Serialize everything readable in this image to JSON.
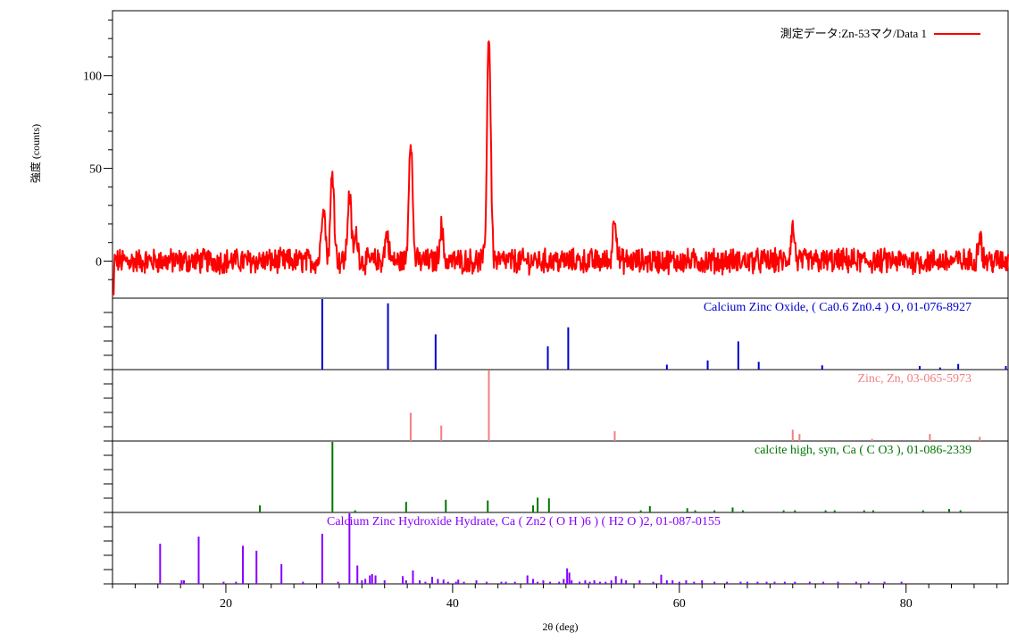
{
  "chart_data": {
    "type": "line",
    "ylabel": "強度 (counts)",
    "xlabel": "2θ (deg)",
    "xlim": [
      10,
      89
    ],
    "ylim": [
      -20,
      135
    ],
    "xticks": [
      20,
      40,
      60,
      80
    ],
    "yticks": [
      0,
      50,
      100
    ],
    "legend_position": "top-right",
    "grid": false,
    "measured": {
      "name": "測定データ:Zn-53マク/Data 1",
      "color": "#ff0000",
      "noise_amplitude": 6,
      "peaks": [
        {
          "x": 28.6,
          "y": 32
        },
        {
          "x": 29.4,
          "y": 49
        },
        {
          "x": 30.9,
          "y": 36
        },
        {
          "x": 31.5,
          "y": 14
        },
        {
          "x": 34.2,
          "y": 15
        },
        {
          "x": 36.3,
          "y": 68
        },
        {
          "x": 39.0,
          "y": 18
        },
        {
          "x": 43.2,
          "y": 123
        },
        {
          "x": 54.3,
          "y": 25
        },
        {
          "x": 70.0,
          "y": 18
        },
        {
          "x": 86.5,
          "y": 15
        }
      ]
    },
    "reference_patterns": [
      {
        "label": "Calcium Zinc Oxide, ( Ca0.6 Zn0.4 ) O, 01-076-8927",
        "color": "#0000cc",
        "label_align": "end",
        "sticks": [
          [
            28.5,
            100
          ],
          [
            34.3,
            94
          ],
          [
            38.5,
            50
          ],
          [
            48.4,
            33
          ],
          [
            50.2,
            60
          ],
          [
            58.9,
            7
          ],
          [
            62.5,
            13
          ],
          [
            65.2,
            40
          ],
          [
            67.0,
            11
          ],
          [
            72.6,
            6
          ],
          [
            81.2,
            5
          ],
          [
            83.0,
            3
          ],
          [
            84.6,
            8
          ],
          [
            88.8,
            5
          ]
        ]
      },
      {
        "label": "Zinc, Zn, 03-065-5973",
        "color": "#f08080",
        "label_align": "end",
        "sticks": [
          [
            36.3,
            40
          ],
          [
            39.0,
            22
          ],
          [
            43.2,
            100
          ],
          [
            54.3,
            14
          ],
          [
            70.0,
            16
          ],
          [
            70.6,
            10
          ],
          [
            77.0,
            3
          ],
          [
            82.1,
            10
          ],
          [
            86.5,
            6
          ]
        ]
      },
      {
        "label": "calcite high, syn, Ca ( C O3 ), 01-086-2339",
        "color": "#007700",
        "label_align": "end",
        "sticks": [
          [
            23.0,
            10
          ],
          [
            29.4,
            100
          ],
          [
            31.4,
            3
          ],
          [
            35.9,
            15
          ],
          [
            39.4,
            18
          ],
          [
            43.1,
            17
          ],
          [
            47.1,
            10
          ],
          [
            47.5,
            21
          ],
          [
            48.5,
            20
          ],
          [
            56.6,
            3
          ],
          [
            57.4,
            9
          ],
          [
            60.7,
            6
          ],
          [
            61.4,
            3
          ],
          [
            63.1,
            3
          ],
          [
            64.7,
            7
          ],
          [
            65.6,
            3
          ],
          [
            69.2,
            3
          ],
          [
            70.2,
            3
          ],
          [
            72.9,
            3
          ],
          [
            73.7,
            3
          ],
          [
            76.3,
            3
          ],
          [
            77.1,
            3
          ],
          [
            81.5,
            3
          ],
          [
            83.8,
            5
          ],
          [
            84.8,
            3
          ]
        ]
      },
      {
        "label": "Calcium Zinc Hydroxide Hydrate, Ca ( Zn2 ( O H )6 ) ( H2 O )2, 01-087-0155",
        "color": "#8800ff",
        "label_align": "start",
        "sticks": [
          [
            14.2,
            57
          ],
          [
            16.1,
            5
          ],
          [
            16.3,
            5
          ],
          [
            17.6,
            67
          ],
          [
            19.8,
            3
          ],
          [
            20.9,
            3
          ],
          [
            21.5,
            54
          ],
          [
            22.7,
            47
          ],
          [
            24.9,
            28
          ],
          [
            26.8,
            3
          ],
          [
            28.5,
            71
          ],
          [
            29.9,
            3
          ],
          [
            30.9,
            100
          ],
          [
            31.6,
            26
          ],
          [
            32.0,
            5
          ],
          [
            32.3,
            7
          ],
          [
            32.7,
            12
          ],
          [
            32.9,
            14
          ],
          [
            33.2,
            12
          ],
          [
            34.0,
            5
          ],
          [
            35.6,
            11
          ],
          [
            35.9,
            5
          ],
          [
            36.5,
            19
          ],
          [
            37.1,
            5
          ],
          [
            37.6,
            3
          ],
          [
            38.2,
            10
          ],
          [
            38.7,
            7
          ],
          [
            39.2,
            6
          ],
          [
            39.6,
            3
          ],
          [
            40.3,
            3
          ],
          [
            40.5,
            6
          ],
          [
            41.0,
            3
          ],
          [
            42.1,
            5
          ],
          [
            43.0,
            3
          ],
          [
            44.3,
            3
          ],
          [
            44.7,
            3
          ],
          [
            45.5,
            3
          ],
          [
            46.6,
            12
          ],
          [
            47.1,
            7
          ],
          [
            47.5,
            3
          ],
          [
            48.0,
            5
          ],
          [
            48.6,
            3
          ],
          [
            49.4,
            3
          ],
          [
            49.8,
            7
          ],
          [
            50.1,
            22
          ],
          [
            50.3,
            16
          ],
          [
            50.5,
            5
          ],
          [
            51.2,
            3
          ],
          [
            51.7,
            5
          ],
          [
            52.1,
            3
          ],
          [
            52.5,
            5
          ],
          [
            53.0,
            3
          ],
          [
            53.5,
            3
          ],
          [
            54.0,
            5
          ],
          [
            54.4,
            11
          ],
          [
            54.9,
            7
          ],
          [
            55.3,
            5
          ],
          [
            56.5,
            5
          ],
          [
            57.7,
            3
          ],
          [
            58.4,
            13
          ],
          [
            58.9,
            5
          ],
          [
            59.4,
            5
          ],
          [
            60.0,
            3
          ],
          [
            60.6,
            5
          ],
          [
            61.3,
            3
          ],
          [
            62.0,
            5
          ],
          [
            63.1,
            3
          ],
          [
            64.2,
            3
          ],
          [
            65.4,
            3
          ],
          [
            66.0,
            3
          ],
          [
            66.9,
            3
          ],
          [
            67.7,
            3
          ],
          [
            68.4,
            3
          ],
          [
            69.3,
            3
          ],
          [
            70.2,
            3
          ],
          [
            71.5,
            3
          ],
          [
            72.7,
            3
          ],
          [
            74.0,
            3
          ],
          [
            75.6,
            3
          ],
          [
            76.7,
            3
          ],
          [
            78.1,
            3
          ],
          [
            79.6,
            3
          ]
        ]
      }
    ]
  }
}
